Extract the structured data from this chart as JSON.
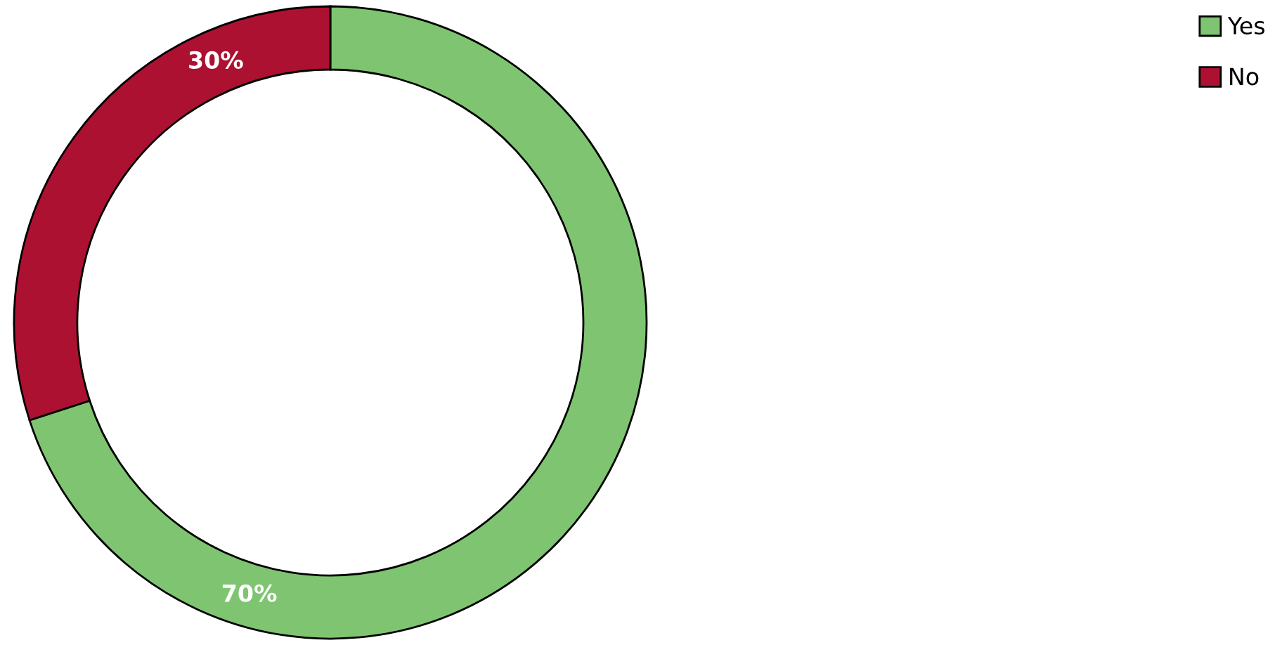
{
  "chart_data": {
    "type": "donut",
    "categories": [
      "Yes",
      "No"
    ],
    "values": [
      70,
      30
    ],
    "colors": [
      "#7fc571",
      "#ad1131"
    ],
    "value_labels": [
      "70%",
      "30%"
    ],
    "legend": "top right"
  }
}
